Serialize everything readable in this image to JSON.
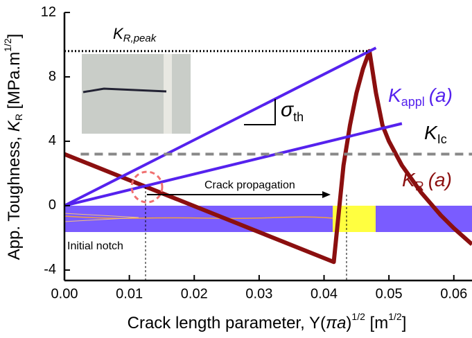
{
  "chart_data": {
    "type": "line",
    "xlabel_parts": [
      "Crack length parameter, Y(",
      "π",
      "a",
      ")",
      "1/2",
      " [m",
      "1/2",
      "]"
    ],
    "ylabel_parts": [
      "App. Toughness, ",
      "K",
      "R",
      " [MPa.m",
      "1/2",
      "]"
    ],
    "xlim": [
      0,
      0.0628
    ],
    "ylim": [
      -4.65,
      12
    ],
    "xticks": [
      {
        "value": 0,
        "label": "0.00"
      },
      {
        "value": 0.01,
        "label": "0.01"
      },
      {
        "value": 0.02,
        "label": "0.02"
      },
      {
        "value": 0.03,
        "label": "0.03"
      },
      {
        "value": 0.04,
        "label": "0.04"
      },
      {
        "value": 0.05,
        "label": "0.05"
      },
      {
        "value": 0.06,
        "label": "0.06"
      }
    ],
    "yticks": [
      -4,
      0,
      4,
      8,
      12
    ],
    "series": [
      {
        "color": "#8b0f0f",
        "style": "solid",
        "x": [
          0,
          0.0415,
          0.042,
          0.0425,
          0.043,
          0.044,
          0.045,
          0.046,
          0.047,
          0.048,
          0.049,
          0.05,
          0.052,
          0.055,
          0.058,
          0.06,
          0.0628
        ],
        "values": [
          3.2,
          -3.5,
          -1.5,
          0.5,
          2.5,
          5,
          7,
          8.5,
          9.6,
          7,
          5,
          4,
          2.5,
          0.8,
          -0.6,
          -1.4,
          -2.4
        ]
      },
      {
        "color": "#5522ee",
        "style": "solid",
        "x": [
          0,
          0.048
        ],
        "values": [
          0,
          9.8
        ]
      },
      {
        "color": "#5522ee",
        "style": "solid",
        "x": [
          0,
          0.052
        ],
        "values": [
          0,
          5.1
        ]
      },
      {
        "color": "#888888",
        "style": "dashed",
        "x": [
          0.0025,
          0.0628
        ],
        "values": [
          3.2,
          3.2
        ]
      },
      {
        "color": "#000000",
        "style": "dotted",
        "x": [
          0,
          0.047
        ],
        "values": [
          9.6,
          9.6
        ]
      }
    ],
    "annotations": {
      "kr_peak": [
        "K",
        "R,peak"
      ],
      "sigma_th": [
        "σ",
        "th"
      ],
      "k_appl": [
        "K",
        "appl",
        "(a)"
      ],
      "k_ic": [
        "K",
        "Ic"
      ],
      "k_r": [
        "K",
        "R",
        "(a)"
      ],
      "crack_propagation": "Crack propagation",
      "initial_notch": "Initial notch"
    }
  }
}
